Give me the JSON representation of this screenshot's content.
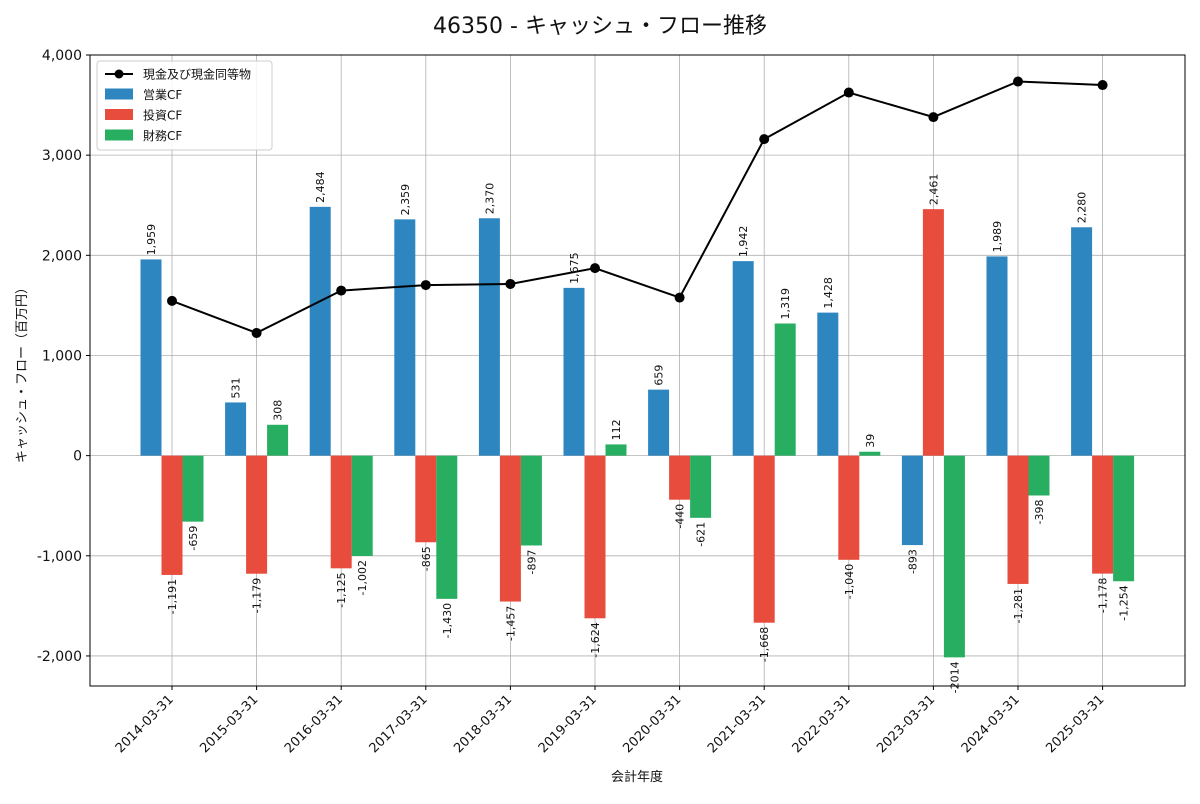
{
  "chart_data": {
    "type": "bar",
    "title": "46350 - キャッシュ・フロー推移",
    "xlabel": "会計年度",
    "ylabel": "キャッシュ・フロー（百万円）",
    "ylim": [
      -2300,
      4000
    ],
    "yticks": [
      -2000,
      -1000,
      0,
      1000,
      2000,
      3000,
      4000
    ],
    "ytick_labels": [
      "-2,000",
      "-1,000",
      "0",
      "1,000",
      "2,000",
      "3,000",
      "4,000"
    ],
    "grid": true,
    "legend_position": "top-left",
    "categories": [
      "2014-03-31",
      "2015-03-31",
      "2016-03-31",
      "2017-03-31",
      "2018-03-31",
      "2019-03-31",
      "2020-03-31",
      "2021-03-31",
      "2022-03-31",
      "2023-03-31",
      "2024-03-31",
      "2025-03-31"
    ],
    "series": [
      {
        "name": "営業CF",
        "kind": "bar",
        "color": "#2e86c1",
        "values": [
          1959,
          531,
          2484,
          2359,
          2370,
          1675,
          659,
          1942,
          1428,
          -893,
          1989,
          2280
        ],
        "labels": [
          "1,959",
          "531",
          "2,484",
          "2,359",
          "2,370",
          "1,675",
          "659",
          "1,942",
          "1,428",
          "-893",
          "1,989",
          "2,280"
        ]
      },
      {
        "name": "投資CF",
        "kind": "bar",
        "color": "#e74c3c",
        "values": [
          -1191,
          -1179,
          -1125,
          -865,
          -1457,
          -1624,
          -440,
          -1668,
          -1040,
          2461,
          -1281,
          -1178
        ],
        "labels": [
          "-1,191",
          "-1,179",
          "-1,125",
          "-865",
          "-1,457",
          "-1,624",
          "-440",
          "-1,668",
          "-1,040",
          "2,461",
          "-1,281",
          "-1,178"
        ]
      },
      {
        "name": "財務CF",
        "kind": "bar",
        "color": "#27ae60",
        "values": [
          -659,
          308,
          -1002,
          -1430,
          -897,
          112,
          -621,
          1319,
          39,
          -2014,
          -398,
          -1254
        ],
        "labels": [
          "-659",
          "308",
          "-1,002",
          "-1,430",
          "-897",
          "112",
          "-621",
          "1,319",
          "39",
          "-2014",
          "-398",
          "-1,254"
        ]
      },
      {
        "name": "現金及び現金同等物",
        "kind": "line",
        "color": "#000000",
        "values": [
          1545,
          1225,
          1648,
          1703,
          1714,
          1872,
          1578,
          3160,
          3625,
          3380,
          3735,
          3700
        ]
      }
    ]
  }
}
